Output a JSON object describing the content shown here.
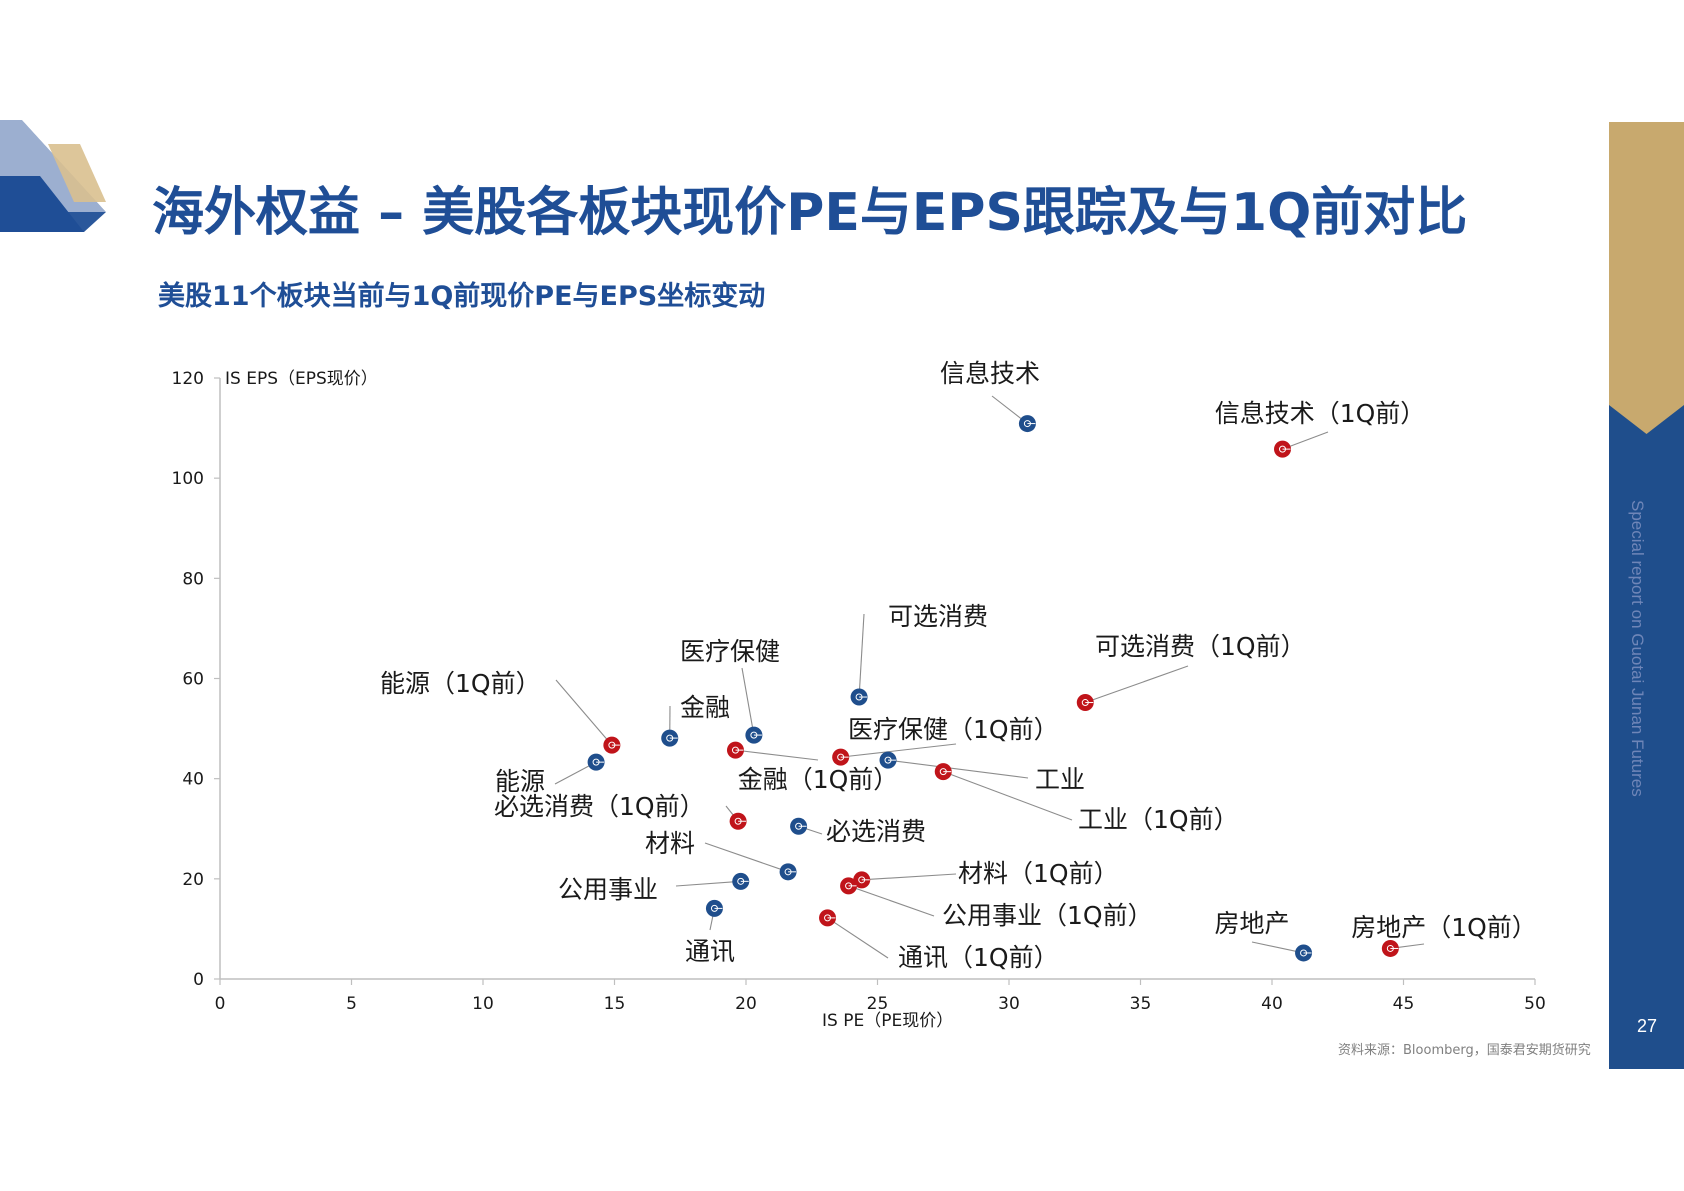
{
  "page": {
    "title": "海外权益 – 美股各板块现价PE与EPS跟踪及与1Q前对比",
    "subtitle": "美股11个板块当前与1Q前现价PE与EPS坐标变动",
    "side_text": "Special report on Guotai Junan Futures",
    "page_number": "27",
    "source": "资料来源：Bloomberg，国泰君安期货研究",
    "colors": {
      "brand_blue": "#1f4e96",
      "gold": "#c8a96e",
      "current": "#1f4e8c",
      "previous": "#c0141a"
    }
  },
  "chart_data": {
    "type": "scatter",
    "xlabel": "IS PE（PE现价）",
    "ylabel": "IS EPS（EPS现价）",
    "xlim": [
      0,
      50
    ],
    "ylim": [
      0,
      120
    ],
    "xticks": [
      0,
      5,
      10,
      15,
      20,
      25,
      30,
      35,
      40,
      45,
      50
    ],
    "yticks": [
      0,
      20,
      40,
      60,
      80,
      100,
      120
    ],
    "grid": false,
    "series": [
      {
        "color": "#1f4e8c",
        "points": [
          {
            "label": "信息技术",
            "x": 30.7,
            "y": 110.9
          },
          {
            "label": "可选消费",
            "x": 24.3,
            "y": 56.3
          },
          {
            "label": "医疗保健",
            "x": 20.3,
            "y": 48.7
          },
          {
            "label": "金融",
            "x": 17.1,
            "y": 48.1
          },
          {
            "label": "能源",
            "x": 14.3,
            "y": 43.3
          },
          {
            "label": "工业",
            "x": 25.4,
            "y": 43.7
          },
          {
            "label": "必选消费",
            "x": 22.0,
            "y": 30.5
          },
          {
            "label": "材料",
            "x": 21.6,
            "y": 21.4
          },
          {
            "label": "公用事业",
            "x": 19.8,
            "y": 19.5
          },
          {
            "label": "通讯",
            "x": 18.8,
            "y": 14.1
          },
          {
            "label": "房地产",
            "x": 41.2,
            "y": 5.2
          }
        ]
      },
      {
        "color": "#c0141a",
        "points": [
          {
            "label": "信息技术（1Q前）",
            "x": 40.4,
            "y": 105.8
          },
          {
            "label": "可选消费（1Q前）",
            "x": 32.9,
            "y": 55.2
          },
          {
            "label": "能源（1Q前）",
            "x": 14.9,
            "y": 46.7
          },
          {
            "label": "医疗保健（1Q前）",
            "x": 23.6,
            "y": 44.3
          },
          {
            "label": "金融（1Q前）",
            "x": 19.6,
            "y": 45.7
          },
          {
            "label": "工业（1Q前）",
            "x": 27.5,
            "y": 41.4
          },
          {
            "label": "必选消费（1Q前）",
            "x": 19.7,
            "y": 31.5
          },
          {
            "label": "材料（1Q前）",
            "x": 24.4,
            "y": 19.8
          },
          {
            "label": "公用事业（1Q前）",
            "x": 23.9,
            "y": 18.6
          },
          {
            "label": "通讯（1Q前）",
            "x": 23.1,
            "y": 12.2
          },
          {
            "label": "房地产（1Q前）",
            "x": 44.5,
            "y": 6.1
          }
        ]
      }
    ]
  }
}
